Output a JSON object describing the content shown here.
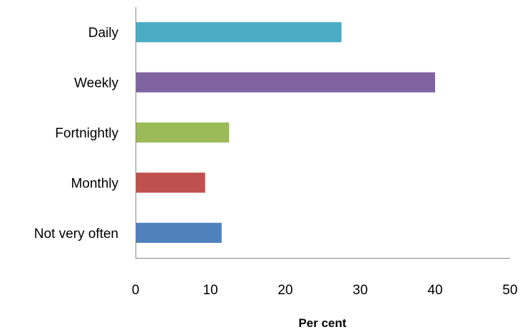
{
  "chart_data": {
    "type": "bar",
    "orientation": "horizontal",
    "categories": [
      "Daily",
      "Weekly",
      "Fortnightly",
      "Monthly",
      "Not very often"
    ],
    "values": [
      27.5,
      40,
      12.5,
      9.3,
      11.5
    ],
    "colors": [
      "#4bacc6",
      "#8064a2",
      "#9bbb59",
      "#c0504d",
      "#4f81bd"
    ],
    "xlabel": "Per cent",
    "xlim": [
      0,
      50
    ],
    "xticks": [
      "0",
      "10",
      "20",
      "30",
      "40",
      "50"
    ],
    "grid": false,
    "legend": "none"
  }
}
